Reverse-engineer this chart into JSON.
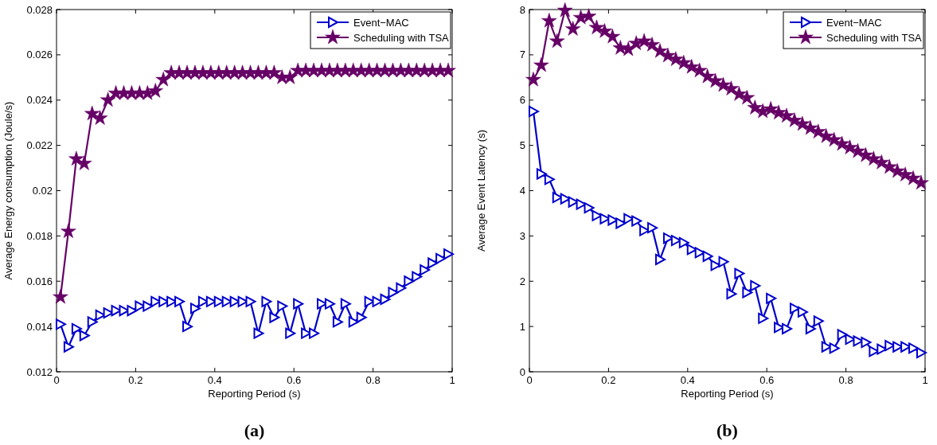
{
  "chart_data": [
    {
      "type": "line",
      "xlabel": "Reporting Period (s)",
      "ylabel": "Average Energy consumption (Joule/s)",
      "annotations": [
        "(a)"
      ],
      "legend": "top right",
      "line_style": "solid",
      "xlim": [
        0,
        1
      ],
      "xticks": [
        0,
        0.2,
        0.4,
        0.6,
        0.8,
        1
      ],
      "ylim": [
        0.012,
        0.028
      ],
      "yticks": [
        0.012,
        0.014,
        0.016,
        0.018,
        0.02,
        0.022,
        0.024,
        0.026,
        0.028
      ],
      "x": [
        0.01,
        0.03,
        0.05,
        0.07,
        0.09,
        0.11,
        0.13,
        0.15,
        0.17,
        0.19,
        0.21,
        0.23,
        0.25,
        0.27,
        0.29,
        0.31,
        0.33,
        0.35,
        0.37,
        0.39,
        0.41,
        0.43,
        0.45,
        0.47,
        0.49,
        0.51,
        0.53,
        0.55,
        0.57,
        0.59,
        0.61,
        0.63,
        0.65,
        0.67,
        0.69,
        0.71,
        0.73,
        0.75,
        0.77,
        0.79,
        0.81,
        0.83,
        0.85,
        0.87,
        0.89,
        0.91,
        0.93,
        0.95,
        0.97,
        0.99
      ],
      "series": [
        {
          "name": "Event−MAC",
          "color": "#0000cc",
          "marker": "triangle",
          "values": [
            0.0141,
            0.0131,
            0.0139,
            0.0136,
            0.0142,
            0.0145,
            0.0146,
            0.0147,
            0.0147,
            0.0147,
            0.0149,
            0.0149,
            0.0151,
            0.0151,
            0.0151,
            0.0151,
            0.014,
            0.0148,
            0.0151,
            0.0151,
            0.0151,
            0.0151,
            0.0151,
            0.0151,
            0.0151,
            0.0137,
            0.0151,
            0.0144,
            0.0149,
            0.0137,
            0.015,
            0.0137,
            0.0137,
            0.015,
            0.015,
            0.0142,
            0.015,
            0.0142,
            0.0144,
            0.0151,
            0.0151,
            0.0152,
            0.0155,
            0.0157,
            0.016,
            0.0162,
            0.0165,
            0.0168,
            0.017,
            0.0172
          ]
        },
        {
          "name": "Scheduling with TSA",
          "color": "#660066",
          "marker": "star",
          "values": [
            0.0153,
            0.0182,
            0.0214,
            0.0212,
            0.0234,
            0.0232,
            0.024,
            0.0243,
            0.0243,
            0.0243,
            0.0243,
            0.0243,
            0.0244,
            0.0249,
            0.0252,
            0.0252,
            0.0252,
            0.0252,
            0.0252,
            0.0252,
            0.0252,
            0.0252,
            0.0252,
            0.0252,
            0.0252,
            0.0252,
            0.0252,
            0.0252,
            0.025,
            0.025,
            0.0253,
            0.0253,
            0.0253,
            0.0253,
            0.0253,
            0.0253,
            0.0253,
            0.0253,
            0.0253,
            0.0253,
            0.0253,
            0.0253,
            0.0253,
            0.0253,
            0.0253,
            0.0253,
            0.0253,
            0.0253,
            0.0253,
            0.0253
          ]
        }
      ]
    },
    {
      "type": "line",
      "xlabel": "Reporting Period (s)",
      "ylabel": "Average Event Latency (s)",
      "annotations": [
        "(b)"
      ],
      "legend": "top right",
      "line_style": "solid",
      "xlim": [
        0,
        1
      ],
      "xticks": [
        0,
        0.2,
        0.4,
        0.6,
        0.8,
        1
      ],
      "ylim": [
        0,
        8
      ],
      "yticks": [
        0,
        1,
        2,
        3,
        4,
        5,
        6,
        7,
        8
      ],
      "x": [
        0.01,
        0.03,
        0.05,
        0.07,
        0.09,
        0.11,
        0.13,
        0.15,
        0.17,
        0.19,
        0.21,
        0.23,
        0.25,
        0.27,
        0.29,
        0.31,
        0.33,
        0.35,
        0.37,
        0.39,
        0.41,
        0.43,
        0.45,
        0.47,
        0.49,
        0.51,
        0.53,
        0.55,
        0.57,
        0.59,
        0.61,
        0.63,
        0.65,
        0.67,
        0.69,
        0.71,
        0.73,
        0.75,
        0.77,
        0.79,
        0.81,
        0.83,
        0.85,
        0.87,
        0.89,
        0.91,
        0.93,
        0.95,
        0.97,
        0.99
      ],
      "series": [
        {
          "name": "Event−MAC",
          "color": "#0000cc",
          "marker": "triangle",
          "values": [
            5.75,
            4.37,
            4.25,
            3.85,
            3.82,
            3.75,
            3.7,
            3.62,
            3.45,
            3.38,
            3.35,
            3.28,
            3.38,
            3.33,
            3.12,
            3.18,
            2.48,
            2.95,
            2.9,
            2.85,
            2.7,
            2.63,
            2.55,
            2.35,
            2.43,
            1.72,
            2.17,
            1.75,
            1.9,
            1.18,
            1.62,
            0.98,
            0.95,
            1.4,
            1.32,
            0.95,
            1.12,
            0.55,
            0.52,
            0.82,
            0.72,
            0.68,
            0.65,
            0.45,
            0.5,
            0.58,
            0.55,
            0.55,
            0.52,
            0.42
          ]
        },
        {
          "name": "Scheduling with TSA",
          "color": "#660066",
          "marker": "star",
          "values": [
            6.45,
            6.77,
            7.75,
            7.3,
            7.98,
            7.57,
            7.82,
            7.85,
            7.6,
            7.52,
            7.4,
            7.15,
            7.12,
            7.25,
            7.3,
            7.22,
            7.08,
            6.98,
            6.9,
            6.82,
            6.73,
            6.65,
            6.52,
            6.42,
            6.33,
            6.25,
            6.13,
            6.05,
            5.83,
            5.75,
            5.8,
            5.72,
            5.65,
            5.55,
            5.47,
            5.38,
            5.3,
            5.2,
            5.12,
            5.03,
            4.95,
            4.87,
            4.78,
            4.7,
            4.62,
            4.52,
            4.43,
            4.35,
            4.27,
            4.17
          ]
        }
      ]
    }
  ]
}
